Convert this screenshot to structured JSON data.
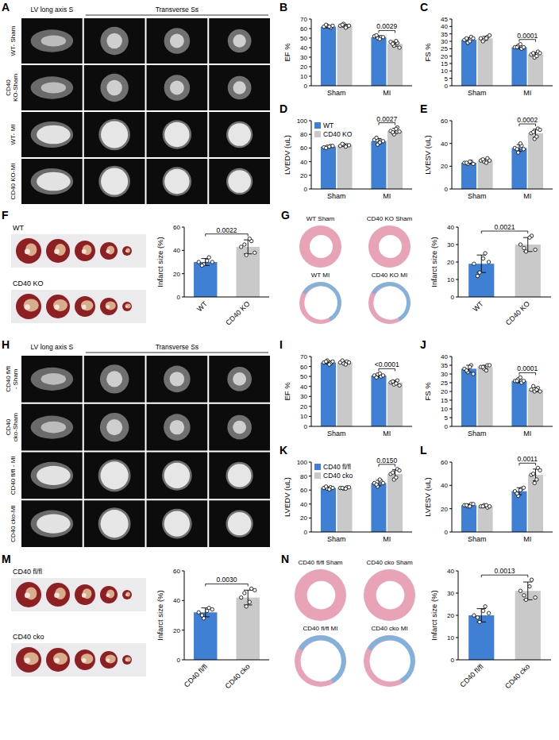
{
  "chart_data": [
    {
      "type": "bar",
      "panel": "B",
      "ylabel": "EF %",
      "categories": [
        "Sham",
        "MI"
      ],
      "legend": "none",
      "ylim": [
        0,
        70
      ],
      "yticks": [
        0,
        10,
        20,
        30,
        40,
        50,
        60,
        70
      ],
      "annotations": [
        null,
        "0.0029"
      ],
      "series": [
        {
          "name": "WT",
          "color": "#3f7fd4",
          "values": [
            62,
            51
          ],
          "errors": [
            1.2,
            1.5
          ],
          "points": [
            [
              62,
              63,
              61,
              64,
              62,
              63
            ],
            [
              52,
              50,
              51,
              53,
              49,
              51
            ]
          ]
        },
        {
          "name": "CD40 KO",
          "color": "#c9c9c9",
          "values": [
            63,
            44
          ],
          "errors": [
            1.5,
            2.5
          ],
          "points": [
            [
              63,
              65,
              62,
              64,
              61,
              63
            ],
            [
              46,
              42,
              45,
              44,
              47,
              40
            ]
          ]
        }
      ]
    },
    {
      "type": "bar",
      "panel": "C",
      "ylabel": "FS %",
      "categories": [
        "Sham",
        "MI"
      ],
      "legend": "none",
      "ylim": [
        0,
        45
      ],
      "yticks": [
        0,
        5,
        10,
        15,
        20,
        25,
        30,
        35,
        40,
        45
      ],
      "annotations": [
        null,
        "0.0001"
      ],
      "series": [
        {
          "name": "WT",
          "color": "#3f7fd4",
          "values": [
            31,
            26
          ],
          "errors": [
            1.5,
            1
          ],
          "points": [
            [
              31,
              29,
              33,
              32,
              30,
              32
            ],
            [
              26,
              27,
              25,
              26,
              28,
              26
            ]
          ]
        },
        {
          "name": "CD40 KO",
          "color": "#c9c9c9",
          "values": [
            32,
            21
          ],
          "errors": [
            1.3,
            1.5
          ],
          "points": [
            [
              32,
              31,
              33,
              30,
              32,
              34
            ],
            [
              21,
              19,
              23,
              22,
              20,
              22
            ]
          ]
        }
      ]
    },
    {
      "type": "bar",
      "panel": "D",
      "ylabel": "LVEDV (uL)",
      "categories": [
        "Sham",
        "MI"
      ],
      "legend": "top-left",
      "ylim": [
        0,
        100
      ],
      "yticks": [
        0,
        20,
        40,
        60,
        80,
        100
      ],
      "annotations": [
        null,
        "0.0027"
      ],
      "series": [
        {
          "name": "WT",
          "color": "#3f7fd4",
          "values": [
            62,
            70
          ],
          "errors": [
            1.2,
            4
          ],
          "points": [
            [
              61,
              62,
              63,
              60,
              62,
              63
            ],
            [
              72,
              65,
              70,
              75,
              68,
              70
            ]
          ]
        },
        {
          "name": "CD40 KO",
          "color": "#c9c9c9",
          "values": [
            64,
            85
          ],
          "errors": [
            1.5,
            4
          ],
          "points": [
            [
              63,
              65,
              64,
              66,
              62,
              64
            ],
            [
              85,
              80,
              90,
              83,
              88,
              84
            ]
          ]
        }
      ]
    },
    {
      "type": "bar",
      "panel": "E",
      "ylabel": "LVESV (uL)",
      "categories": [
        "Sham",
        "MI"
      ],
      "legend": "none",
      "ylim": [
        0,
        60
      ],
      "yticks": [
        0,
        20,
        40,
        60
      ],
      "annotations": [
        null,
        "0.0002"
      ],
      "series": [
        {
          "name": "WT",
          "color": "#3f7fd4",
          "values": [
            23,
            36
          ],
          "errors": [
            1,
            3
          ],
          "points": [
            [
              23,
              22,
              24,
              23,
              24,
              22
            ],
            [
              36,
              32,
              38,
              35,
              40,
              35
            ]
          ]
        },
        {
          "name": "CD40 KO",
          "color": "#c9c9c9",
          "values": [
            25,
            49
          ],
          "errors": [
            1.5,
            3.5
          ],
          "points": [
            [
              25,
              24,
              27,
              26,
              23,
              25
            ],
            [
              49,
              44,
              53,
              50,
              46,
              52
            ]
          ]
        }
      ]
    },
    {
      "type": "bar",
      "ylabel": "Infarct size (%)",
      "categories": [
        "WT",
        "CD40 KO"
      ],
      "values": [
        30,
        43
      ],
      "errors": [
        3,
        6
      ],
      "points": [
        [
          30,
          28,
          34,
          27,
          31,
          30
        ],
        [
          43,
          36,
          48,
          45,
          50,
          38
        ]
      ],
      "colors": [
        "#3f7fd4",
        "#c9c9c9"
      ],
      "ylim": [
        0,
        60
      ],
      "yticks": [
        0,
        20,
        40,
        60
      ],
      "annotation": "0.0022"
    },
    {
      "type": "bar",
      "ylabel": "Infarct size (%)",
      "categories": [
        "WT",
        "CD40 KO"
      ],
      "values": [
        19,
        30
      ],
      "errors": [
        5,
        4
      ],
      "points": [
        [
          19,
          14,
          25,
          12,
          22,
          20
        ],
        [
          30,
          26,
          35,
          28,
          34,
          27
        ]
      ],
      "colors": [
        "#3f7fd4",
        "#c9c9c9"
      ],
      "ylim": [
        0,
        40
      ],
      "yticks": [
        0,
        10,
        20,
        30,
        40
      ],
      "annotation": "0.0021"
    },
    {
      "type": "bar",
      "panel": "I",
      "ylabel": "EF %",
      "categories": [
        "Sham",
        "MI"
      ],
      "legend": "none",
      "ylim": [
        0,
        70
      ],
      "yticks": [
        0,
        10,
        20,
        30,
        40,
        50,
        60,
        70
      ],
      "annotations": [
        null,
        "<0.0001"
      ],
      "series": [
        {
          "name": "CD40 fl/fl",
          "color": "#3f7fd4",
          "values": [
            64,
            51
          ],
          "errors": [
            1.5,
            1.5
          ],
          "points": [
            [
              64,
              66,
              63,
              65,
              62,
              65
            ],
            [
              51,
              52,
              50,
              49,
              53,
              51
            ]
          ]
        },
        {
          "name": "CD40 cko",
          "color": "#c9c9c9",
          "values": [
            64,
            44
          ],
          "errors": [
            1.4,
            2
          ],
          "points": [
            [
              64,
              63,
              65,
              66,
              62,
              64
            ],
            [
              44,
              42,
              46,
              45,
              43,
              41
            ]
          ]
        }
      ]
    },
    {
      "type": "bar",
      "panel": "J",
      "ylabel": "FS %",
      "categories": [
        "Sham",
        "MI"
      ],
      "legend": "none",
      "ylim": [
        0,
        40
      ],
      "yticks": [
        0,
        5,
        10,
        15,
        20,
        25,
        30,
        35,
        40
      ],
      "annotations": [
        null,
        "0.0001"
      ],
      "series": [
        {
          "name": "CD40 fl/fl",
          "color": "#3f7fd4",
          "values": [
            33,
            26
          ],
          "errors": [
            2,
            1
          ],
          "points": [
            [
              33,
              31,
              35,
              32,
              34,
              30
            ],
            [
              26,
              27,
              25,
              26,
              28,
              26
            ]
          ]
        },
        {
          "name": "CD40 cko",
          "color": "#c9c9c9",
          "values": [
            34,
            21
          ],
          "errors": [
            1,
            1.2
          ],
          "points": [
            [
              34,
              33,
              35,
              34,
              32,
              35
            ],
            [
              21,
              20,
              22,
              23,
              21,
              20
            ]
          ]
        }
      ]
    },
    {
      "type": "bar",
      "panel": "K",
      "ylabel": "LVEDV (uL)",
      "categories": [
        "Sham",
        "MI"
      ],
      "legend": "top-left",
      "ylim": [
        0,
        100
      ],
      "yticks": [
        0,
        20,
        40,
        60,
        80,
        100
      ],
      "annotations": [
        null,
        "0.0150"
      ],
      "series": [
        {
          "name": "CD40 fl/fl",
          "color": "#3f7fd4",
          "values": [
            63,
            70
          ],
          "errors": [
            1.5,
            4
          ],
          "points": [
            [
              63,
              62,
              64,
              65,
              61,
              63
            ],
            [
              70,
              65,
              73,
              68,
              75,
              70
            ]
          ]
        },
        {
          "name": "CD40 cko",
          "color": "#c9c9c9",
          "values": [
            63,
            83
          ],
          "errors": [
            1,
            6
          ],
          "points": [
            [
              63,
              62,
              64,
              63,
              62,
              64
            ],
            [
              83,
              75,
              90,
              85,
              78,
              88
            ]
          ]
        }
      ]
    },
    {
      "type": "bar",
      "panel": "L",
      "ylabel": "LVESV (uL)",
      "categories": [
        "Sham",
        "MI"
      ],
      "legend": "none",
      "ylim": [
        0,
        60
      ],
      "yticks": [
        0,
        20,
        40,
        60
      ],
      "annotations": [
        null,
        "0.0011"
      ],
      "series": [
        {
          "name": "CD40 fl/fl",
          "color": "#3f7fd4",
          "values": [
            23,
            35
          ],
          "errors": [
            1,
            3
          ],
          "points": [
            [
              23,
              22,
              24,
              23,
              22,
              24
            ],
            [
              35,
              31,
              37,
              33,
              36,
              38
            ]
          ]
        },
        {
          "name": "CD40 cko",
          "color": "#c9c9c9",
          "values": [
            22,
            49
          ],
          "errors": [
            0.8,
            5
          ],
          "points": [
            [
              22,
              23,
              21,
              22,
              23,
              22
            ],
            [
              49,
              42,
              55,
              50,
              45,
              53
            ]
          ]
        }
      ]
    },
    {
      "type": "bar",
      "ylabel": "Infarct size (%)",
      "categories": [
        "CD40 fl/fl",
        "CD40 cko"
      ],
      "values": [
        32,
        42
      ],
      "errors": [
        3,
        5
      ],
      "points": [
        [
          32,
          28,
          35,
          30,
          33,
          34
        ],
        [
          42,
          36,
          48,
          45,
          39,
          47
        ]
      ],
      "colors": [
        "#3f7fd4",
        "#c9c9c9"
      ],
      "ylim": [
        0,
        60
      ],
      "yticks": [
        0,
        20,
        40,
        60
      ],
      "annotation": "0.0030"
    },
    {
      "type": "bar",
      "ylabel": "Infarct size (%)",
      "categories": [
        "CD40 fl/fl",
        "CD40 cko"
      ],
      "values": [
        20,
        31
      ],
      "errors": [
        3,
        4
      ],
      "points": [
        [
          20,
          17,
          24,
          19,
          22,
          21
        ],
        [
          31,
          27,
          36,
          29,
          33,
          28
        ]
      ],
      "colors": [
        "#3f7fd4",
        "#c9c9c9"
      ],
      "ylim": [
        0,
        40
      ],
      "yticks": [
        0,
        10,
        20,
        30,
        40
      ],
      "annotation": "0.0013"
    }
  ],
  "image_panels": [
    {
      "panel": "A",
      "header": [
        "LV long axis S",
        "Transverse Ss"
      ],
      "rows": [
        "WT- Sham",
        "CD40 KO-Sham",
        "WT- MI",
        "CD40 KO-MI"
      ]
    },
    {
      "panel": "F",
      "rows": [
        "WT",
        "CD40 KO"
      ]
    },
    {
      "panel": "G",
      "labels": [
        "WT Sham",
        "CD40 KO Sham",
        "WT MI",
        "CD40 KO MI"
      ]
    },
    {
      "panel": "H",
      "header": [
        "LV long axis S",
        "Transverse Ss"
      ],
      "rows": [
        "CD40 fl/fl - Sham",
        "CD40 cko-Sham",
        "CD40 fl/fl - MI",
        "CD40 cko-MI"
      ]
    },
    {
      "panel": "M",
      "rows": [
        "CD40 fl/fl",
        "CD40 cko"
      ]
    },
    {
      "panel": "N",
      "labels": [
        "CD40 fl/fl Sham",
        "CD40 cko Sham",
        "CD40 fl/fl MI",
        "CD40 cko MI"
      ]
    }
  ]
}
